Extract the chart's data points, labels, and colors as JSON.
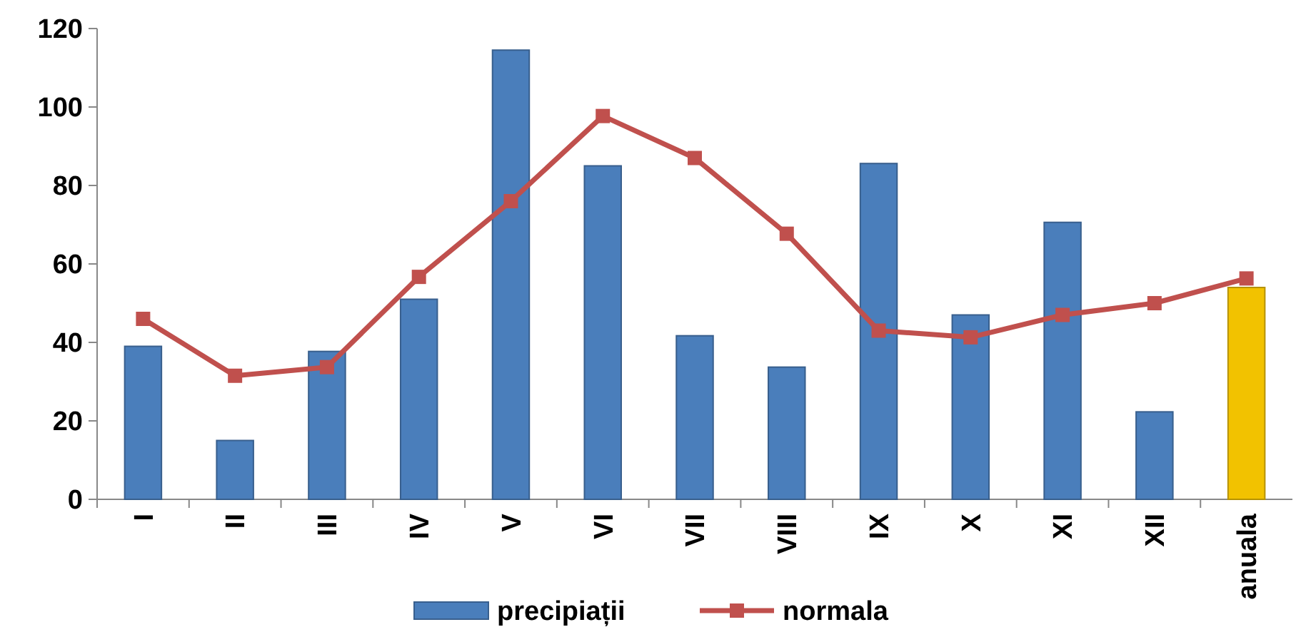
{
  "chart_data": {
    "type": "bar",
    "categories": [
      "I",
      "II",
      "III",
      "IV",
      "V",
      "VI",
      "VII",
      "VIII",
      "IX",
      "X",
      "XI",
      "XII",
      "anuala"
    ],
    "series": [
      {
        "name": "precipiații",
        "colors": [
          "#4a7ebb",
          "#4a7ebb",
          "#4a7ebb",
          "#4a7ebb",
          "#4a7ebb",
          "#4a7ebb",
          "#4a7ebb",
          "#4a7ebb",
          "#4a7ebb",
          "#4a7ebb",
          "#4a7ebb",
          "#4a7ebb",
          "#f2c200"
        ],
        "values": [
          39,
          15,
          37.7,
          51,
          114.5,
          85,
          41.7,
          33.7,
          85.6,
          47,
          70.6,
          22.3,
          54
        ]
      },
      {
        "name": "normala",
        "type": "line",
        "color": "#c0504d",
        "values": [
          46,
          31.5,
          33.7,
          56.7,
          76,
          97.7,
          87,
          67.7,
          43,
          41.3,
          47,
          50,
          56.3
        ]
      }
    ],
    "ylim": [
      0,
      120
    ],
    "yticks": [
      0,
      20,
      40,
      60,
      80,
      100,
      120
    ],
    "marker": "square",
    "line_style": "solid",
    "legend": "bottom"
  }
}
